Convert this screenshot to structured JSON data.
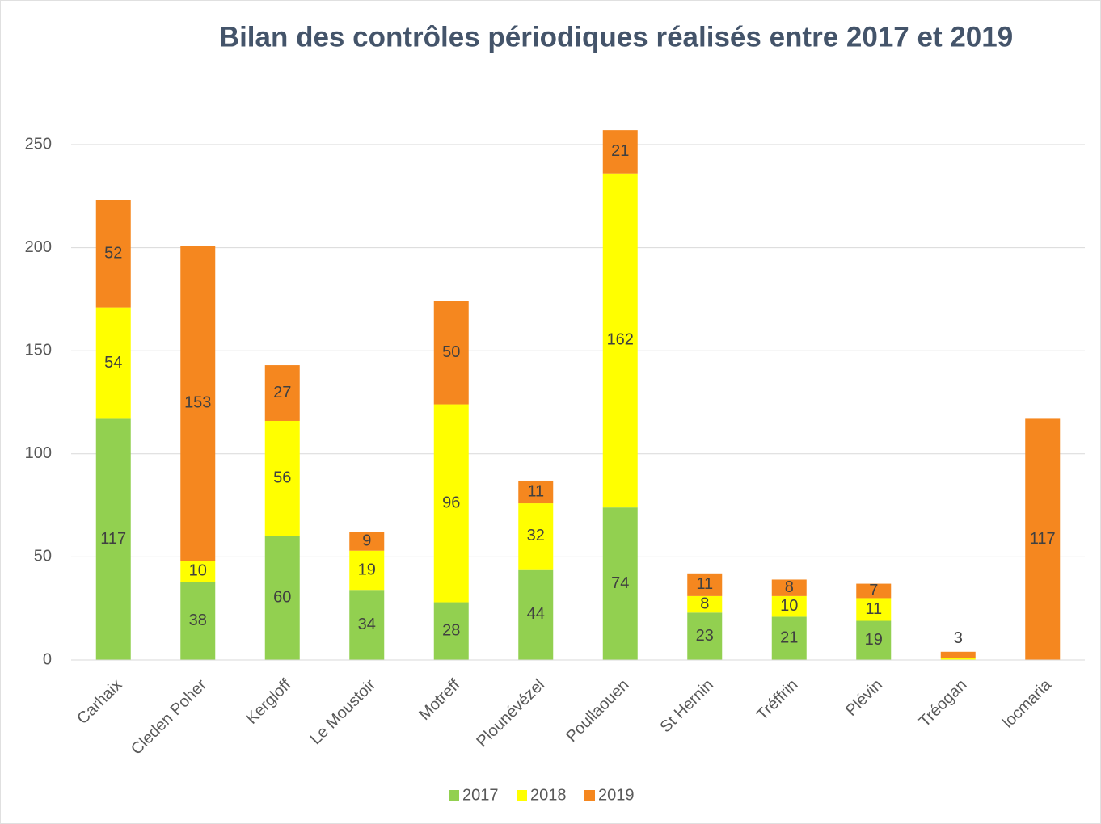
{
  "chart_data": {
    "type": "stacked-bar",
    "title": "Bilan des contrôles périodiques réalisés entre 2017 et 2019",
    "categories": [
      "Carhaix",
      "Cleden Poher",
      "Kergloff",
      "Le Moustoir",
      "Motreff",
      "Plounévézel",
      "Poullaouen",
      "St Hernin",
      "Tréffrin",
      "Plévin",
      "Tréogan",
      "locmaria"
    ],
    "series": [
      {
        "name": "2017",
        "color": "#92d050",
        "values": [
          117,
          38,
          60,
          34,
          28,
          44,
          74,
          23,
          21,
          19,
          0,
          0
        ],
        "value_labels": [
          "117",
          "38",
          "60",
          "34",
          "28",
          "44",
          "74",
          "23",
          "21",
          "19",
          null,
          null
        ]
      },
      {
        "name": "2018",
        "color": "#ffff00",
        "values": [
          54,
          10,
          56,
          19,
          96,
          32,
          162,
          8,
          10,
          11,
          1,
          0
        ],
        "value_labels": [
          "54",
          "10",
          "56",
          "19",
          "96",
          "32",
          "162",
          "8",
          "10",
          "11",
          null,
          null
        ]
      },
      {
        "name": "2019",
        "color": "#f5871f",
        "values": [
          52,
          153,
          27,
          9,
          50,
          11,
          21,
          11,
          8,
          7,
          3,
          117
        ],
        "value_labels": [
          "52",
          "153",
          "27",
          "9",
          "50",
          "11",
          "21",
          "11",
          "8",
          "7",
          "3",
          "117"
        ]
      }
    ],
    "ylim": [
      0,
      260
    ],
    "yticks": [
      0,
      50,
      100,
      150,
      200,
      250
    ],
    "grid": true,
    "legend": "bottom"
  }
}
